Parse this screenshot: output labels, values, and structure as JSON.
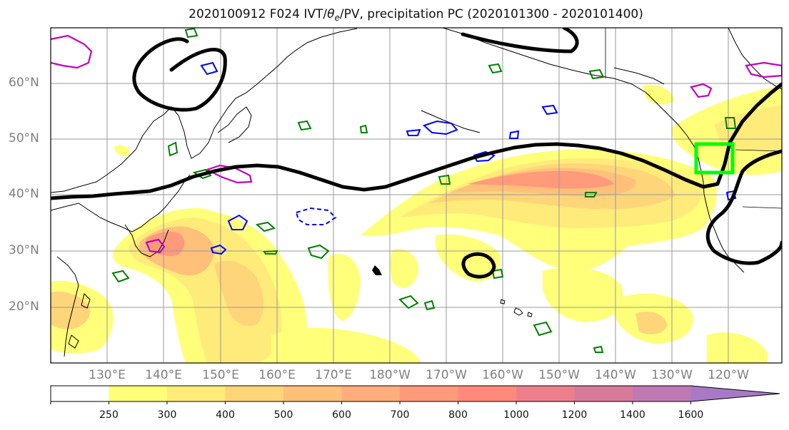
{
  "title": {
    "prefix": "2020100912 F024 IVT/",
    "theta": "θ",
    "sub": "e",
    "suffix": "/PV, precipitation PC (2020101300 - 2020101400)"
  },
  "lat_labels": [
    "60°N",
    "50°N",
    "40°N",
    "30°N",
    "20°N"
  ],
  "lon_labels": [
    "130°E",
    "140°E",
    "150°E",
    "160°E",
    "170°E",
    "180°W",
    "170°W",
    "160°W",
    "150°W",
    "140°W",
    "130°W",
    "120°W"
  ],
  "colorbar": {
    "labels": [
      "250",
      "300",
      "400",
      "500",
      "600",
      "700",
      "800",
      "1000",
      "1200",
      "1400",
      "1600"
    ],
    "colors": [
      "#ffffff",
      "#ffff7a",
      "#ffeb7a",
      "#ffd57a",
      "#ffc07a",
      "#ffad7a",
      "#ff9a7a",
      "#ff8a7a",
      "#ee7f8a",
      "#d87a9a",
      "#bf7ab3",
      "#a87ac6"
    ]
  },
  "colors": {
    "pv_contour": "#000000",
    "theta_e_warm": "#c000c0",
    "theta_e_cold": "#0000ff",
    "pv_green": "#008000",
    "target_box": "#00ff00"
  }
}
